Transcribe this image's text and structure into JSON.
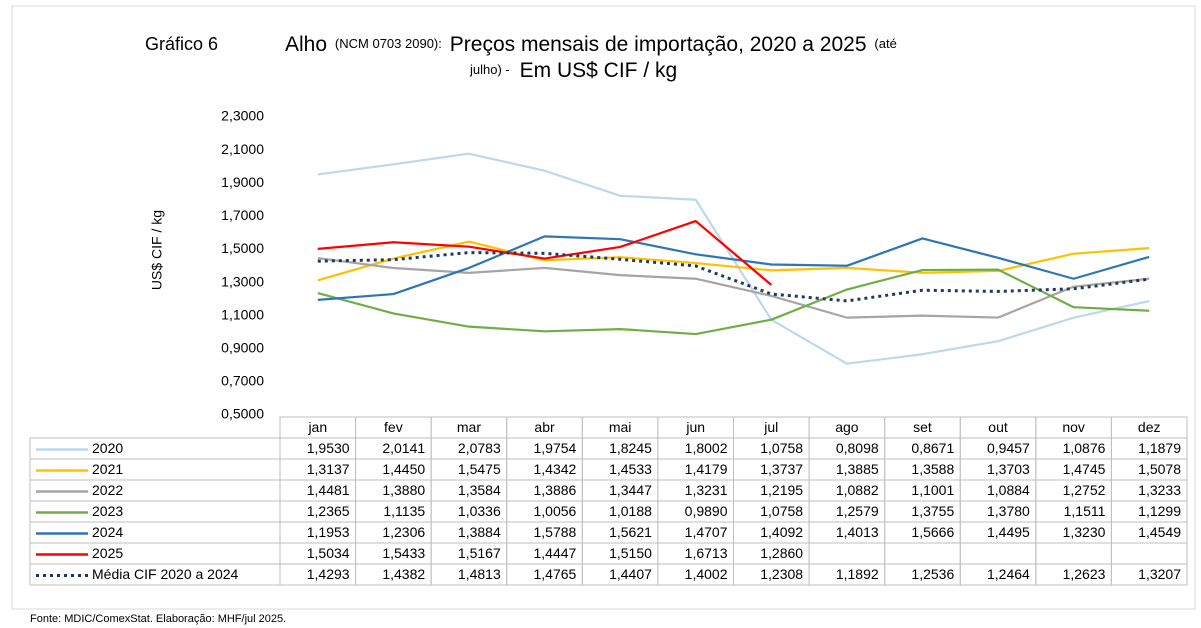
{
  "chart_data": {
    "type": "line",
    "label": "Gráfico 6",
    "title_line1": [
      "Alho",
      "(NCM 0703 2090):",
      "Preços mensais de importação, 2020 a 2025",
      "(até"
    ],
    "title_line2": [
      "julho) -",
      "Em US$ CIF / kg"
    ],
    "y_label": "US$ CIF / kg",
    "source": "Fonte: MDIC/ComexStat.  Elaboração: MHF/jul  2025.",
    "categories": [
      "jan",
      "fev",
      "mar",
      "abr",
      "mai",
      "jun",
      "jul",
      "ago",
      "set",
      "out",
      "nov",
      "dez"
    ],
    "ylim": [
      0.5,
      2.3
    ],
    "yticks": [
      {
        "value": 0.5,
        "label": "0,5000"
      },
      {
        "value": 0.7,
        "label": "0,7000"
      },
      {
        "value": 0.9,
        "label": "0,9000"
      },
      {
        "value": 1.1,
        "label": "1,1000"
      },
      {
        "value": 1.3,
        "label": "1,3000"
      },
      {
        "value": 1.5,
        "label": "1,5000"
      },
      {
        "value": 1.7,
        "label": "1,7000"
      },
      {
        "value": 1.9,
        "label": "1,9000"
      },
      {
        "value": 2.1,
        "label": "2,1000"
      },
      {
        "value": 2.3,
        "label": "2,3000"
      }
    ],
    "grid": false,
    "series": [
      {
        "name": "2020",
        "color": "#bdd7ee",
        "values": [
          1.953,
          2.0141,
          2.0783,
          1.9754,
          1.8245,
          1.8002,
          1.0758,
          0.8098,
          0.8671,
          0.9457,
          1.0876,
          1.1879
        ],
        "value_labels": [
          "1,9530",
          "2,0141",
          "2,0783",
          "1,9754",
          "1,8245",
          "1,8002",
          "1,0758",
          "0,8098",
          "0,8671",
          "0,9457",
          "1,0876",
          "1,1879"
        ]
      },
      {
        "name": "2021",
        "color": "#ffc000",
        "values": [
          1.3137,
          1.445,
          1.5475,
          1.4342,
          1.4533,
          1.4179,
          1.3737,
          1.3885,
          1.3588,
          1.3703,
          1.4745,
          1.5078
        ],
        "value_labels": [
          "1,3137",
          "1,4450",
          "1,5475",
          "1,4342",
          "1,4533",
          "1,4179",
          "1,3737",
          "1,3885",
          "1,3588",
          "1,3703",
          "1,4745",
          "1,5078"
        ]
      },
      {
        "name": "2022",
        "color": "#a5a5a5",
        "values": [
          1.4481,
          1.388,
          1.3584,
          1.3886,
          1.3447,
          1.3231,
          1.2195,
          1.0882,
          1.1001,
          1.0884,
          1.2752,
          1.3233
        ],
        "value_labels": [
          "1,4481",
          "1,3880",
          "1,3584",
          "1,3886",
          "1,3447",
          "1,3231",
          "1,2195",
          "1,0882",
          "1,1001",
          "1,0884",
          "1,2752",
          "1,3233"
        ]
      },
      {
        "name": "2023",
        "color": "#70ad47",
        "values": [
          1.2365,
          1.1135,
          1.0336,
          1.0056,
          1.0188,
          0.989,
          1.0758,
          1.2579,
          1.3755,
          1.378,
          1.1511,
          1.1299
        ],
        "value_labels": [
          "1,2365",
          "1,1135",
          "1,0336",
          "1,0056",
          "1,0188",
          "0,9890",
          "1,0758",
          "1,2579",
          "1,3755",
          "1,3780",
          "1,1511",
          "1,1299"
        ]
      },
      {
        "name": "2024",
        "color": "#2e75b6",
        "values": [
          1.1953,
          1.2306,
          1.3884,
          1.5788,
          1.5621,
          1.4707,
          1.4092,
          1.4013,
          1.5666,
          1.4495,
          1.323,
          1.4549
        ],
        "value_labels": [
          "1,1953",
          "1,2306",
          "1,3884",
          "1,5788",
          "1,5621",
          "1,4707",
          "1,4092",
          "1,4013",
          "1,5666",
          "1,4495",
          "1,3230",
          "1,4549"
        ]
      },
      {
        "name": "2025",
        "color": "#ff0000",
        "values": [
          1.5034,
          1.5433,
          1.5167,
          1.4447,
          1.515,
          1.6713,
          1.286,
          null,
          null,
          null,
          null,
          null
        ],
        "value_labels": [
          "1,5034",
          "1,5433",
          "1,5167",
          "1,4447",
          "1,5150",
          "1,6713",
          "1,2860",
          null,
          null,
          null,
          null,
          null
        ]
      },
      {
        "name": "Média CIF 2020 a 2024",
        "color": "#203864",
        "style": "dotted",
        "values": [
          1.4293,
          1.4382,
          1.4813,
          1.4765,
          1.4407,
          1.4002,
          1.2308,
          1.1892,
          1.2536,
          1.2464,
          1.2623,
          1.3207
        ],
        "value_labels": [
          "1,4293",
          "1,4382",
          "1,4813",
          "1,4765",
          "1,4407",
          "1,4002",
          "1,2308",
          "1,1892",
          "1,2536",
          "1,2464",
          "1,2623",
          "1,3207"
        ]
      }
    ]
  }
}
